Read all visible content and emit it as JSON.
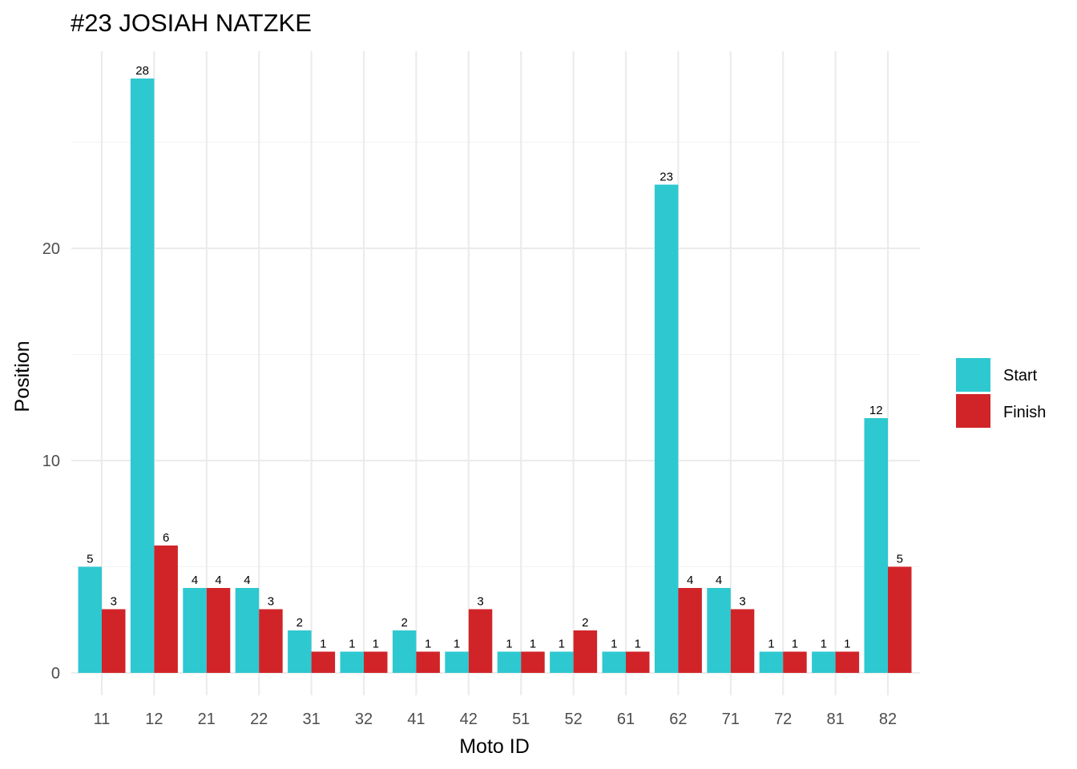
{
  "chart_data": {
    "type": "bar",
    "title": "#23 JOSIAH NATZKE",
    "xlabel": "Moto ID",
    "ylabel": "Position",
    "categories": [
      "11",
      "12",
      "21",
      "22",
      "31",
      "32",
      "41",
      "42",
      "51",
      "52",
      "61",
      "62",
      "71",
      "72",
      "81",
      "82"
    ],
    "series": [
      {
        "name": "Start",
        "color": "#2ec8d1",
        "values": [
          5,
          28,
          4,
          4,
          2,
          1,
          2,
          1,
          1,
          1,
          1,
          23,
          4,
          1,
          1,
          12
        ]
      },
      {
        "name": "Finish",
        "color": "#d12428",
        "values": [
          3,
          6,
          4,
          3,
          1,
          1,
          1,
          3,
          1,
          2,
          1,
          4,
          3,
          1,
          1,
          5
        ]
      }
    ],
    "ylim": [
      0,
      29.4
    ],
    "yticks": [
      0,
      10,
      20
    ],
    "grid": true,
    "legend_position": "right"
  }
}
